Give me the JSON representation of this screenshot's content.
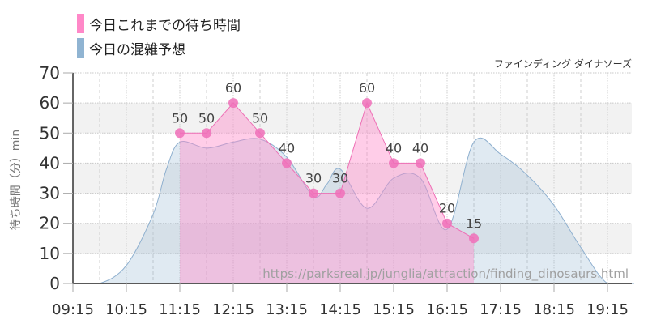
{
  "legend": {
    "actual_label": "今日これまでの待ち時間",
    "forecast_label": "今日の混雑予想",
    "actual_color": "#ff88c8",
    "forecast_color": "#90b4d2"
  },
  "attraction_name": "ファインディング ダイナソーズ",
  "watermark": "https://parksreal.jp/junglia/attraction/finding_dinosaurs.html",
  "chart_data": {
    "type": "area",
    "title": "",
    "xlabel": "",
    "ylabel": "待ち時間（分）min",
    "ylim": [
      0,
      70
    ],
    "yticks": [
      0,
      10,
      20,
      30,
      40,
      50,
      60,
      70
    ],
    "xticks": [
      "09:15",
      "10:15",
      "11:15",
      "12:15",
      "13:15",
      "14:15",
      "15:15",
      "16:15",
      "17:15",
      "18:15",
      "19:15"
    ],
    "grid": true,
    "legend_position": "top-left",
    "series": [
      {
        "name": "今日これまでの待ち時間",
        "type": "area-line-markers",
        "x": [
          "11:15",
          "11:45",
          "12:15",
          "12:45",
          "13:15",
          "13:45",
          "14:15",
          "14:45",
          "15:15",
          "15:45",
          "16:15",
          "16:45"
        ],
        "values": [
          50,
          50,
          60,
          50,
          40,
          30,
          30,
          60,
          40,
          40,
          20,
          15
        ],
        "data_labels": true
      },
      {
        "name": "今日の混雑予想",
        "type": "smooth-area",
        "x": [
          "09:15",
          "09:45",
          "10:15",
          "10:45",
          "11:00",
          "11:15",
          "11:45",
          "12:15",
          "12:45",
          "13:15",
          "13:45",
          "14:00",
          "14:15",
          "14:45",
          "15:15",
          "15:45",
          "16:15",
          "16:45",
          "17:15",
          "17:45",
          "18:15",
          "18:45",
          "19:15",
          "19:45"
        ],
        "values": [
          0,
          0,
          6,
          23,
          38,
          47,
          45,
          47,
          48,
          42,
          29,
          33,
          38,
          25,
          35,
          35,
          18,
          47,
          43,
          36,
          26,
          12,
          0,
          0
        ]
      }
    ]
  }
}
